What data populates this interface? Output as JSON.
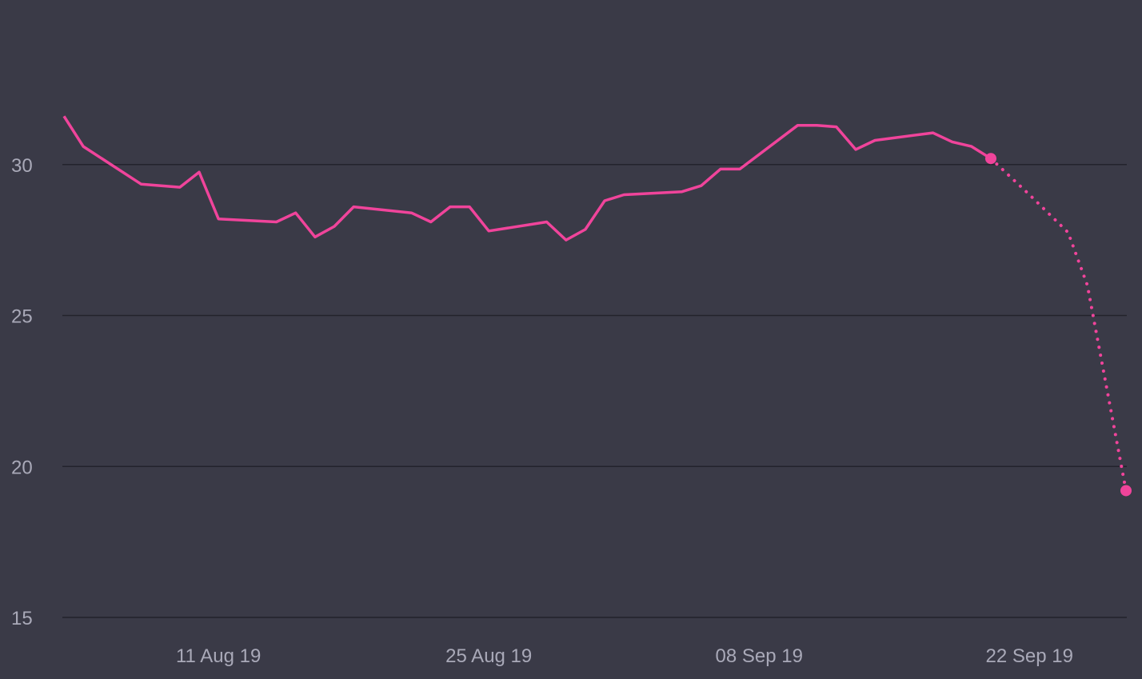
{
  "chart_data": {
    "type": "line",
    "title": "",
    "xlabel": "",
    "ylabel": "",
    "ylim": [
      15,
      35
    ],
    "xlim": [
      "2019-08-03",
      "2019-09-27"
    ],
    "grid": true,
    "x_ticks": [
      {
        "date": "2019-08-11",
        "label": "11 Aug 19"
      },
      {
        "date": "2019-08-25",
        "label": "25 Aug 19"
      },
      {
        "date": "2019-09-08",
        "label": "08 Sep 19"
      },
      {
        "date": "2019-09-22",
        "label": "22 Sep 19"
      }
    ],
    "y_ticks": [
      {
        "value": 15,
        "label": "15"
      },
      {
        "value": 20,
        "label": "20"
      },
      {
        "value": 25,
        "label": "25"
      },
      {
        "value": 30,
        "label": "30"
      }
    ],
    "series": [
      {
        "style": "solid",
        "color": "#f0449b",
        "points": [
          {
            "x": "2019-08-03",
            "y": 31.6
          },
          {
            "x": "2019-08-04",
            "y": 30.6
          },
          {
            "x": "2019-08-07",
            "y": 29.35
          },
          {
            "x": "2019-08-09",
            "y": 29.25
          },
          {
            "x": "2019-08-10",
            "y": 29.75
          },
          {
            "x": "2019-08-11",
            "y": 28.2
          },
          {
            "x": "2019-08-14",
            "y": 28.1
          },
          {
            "x": "2019-08-15",
            "y": 28.4
          },
          {
            "x": "2019-08-16",
            "y": 27.6
          },
          {
            "x": "2019-08-17",
            "y": 27.95
          },
          {
            "x": "2019-08-18",
            "y": 28.6
          },
          {
            "x": "2019-08-21",
            "y": 28.4
          },
          {
            "x": "2019-08-22",
            "y": 28.1
          },
          {
            "x": "2019-08-23",
            "y": 28.6
          },
          {
            "x": "2019-08-24",
            "y": 28.6
          },
          {
            "x": "2019-08-25",
            "y": 27.8
          },
          {
            "x": "2019-08-28",
            "y": 28.1
          },
          {
            "x": "2019-08-29",
            "y": 27.5
          },
          {
            "x": "2019-08-30",
            "y": 27.85
          },
          {
            "x": "2019-08-31",
            "y": 28.8
          },
          {
            "x": "2019-09-01",
            "y": 29.0
          },
          {
            "x": "2019-09-04",
            "y": 29.1
          },
          {
            "x": "2019-09-05",
            "y": 29.3
          },
          {
            "x": "2019-09-06",
            "y": 29.85
          },
          {
            "x": "2019-09-07",
            "y": 29.85
          },
          {
            "x": "2019-09-10",
            "y": 31.3
          },
          {
            "x": "2019-09-11",
            "y": 31.3
          },
          {
            "x": "2019-09-12",
            "y": 31.25
          },
          {
            "x": "2019-09-13",
            "y": 30.5
          },
          {
            "x": "2019-09-14",
            "y": 30.8
          },
          {
            "x": "2019-09-17",
            "y": 31.05
          },
          {
            "x": "2019-09-18",
            "y": 30.75
          },
          {
            "x": "2019-09-19",
            "y": 30.6
          },
          {
            "x": "2019-09-20",
            "y": 30.2
          }
        ]
      },
      {
        "style": "dotted",
        "color": "#f0449b",
        "points": [
          {
            "x": "2019-09-20",
            "y": 30.2
          },
          {
            "x": "2019-09-22",
            "y": 29.0
          },
          {
            "x": "2019-09-24",
            "y": 27.75
          },
          {
            "x": "2019-09-25",
            "y": 26.0
          },
          {
            "x": "2019-09-27",
            "y": 19.2
          }
        ]
      }
    ],
    "end_markers": [
      {
        "x": "2019-09-20",
        "y": 30.2
      },
      {
        "x": "2019-09-27",
        "y": 19.2
      }
    ],
    "colors": {
      "background": "#3a3a47",
      "grid": "#23232c",
      "line": "#f0449b",
      "tick_text": "#a9a9b8"
    }
  }
}
